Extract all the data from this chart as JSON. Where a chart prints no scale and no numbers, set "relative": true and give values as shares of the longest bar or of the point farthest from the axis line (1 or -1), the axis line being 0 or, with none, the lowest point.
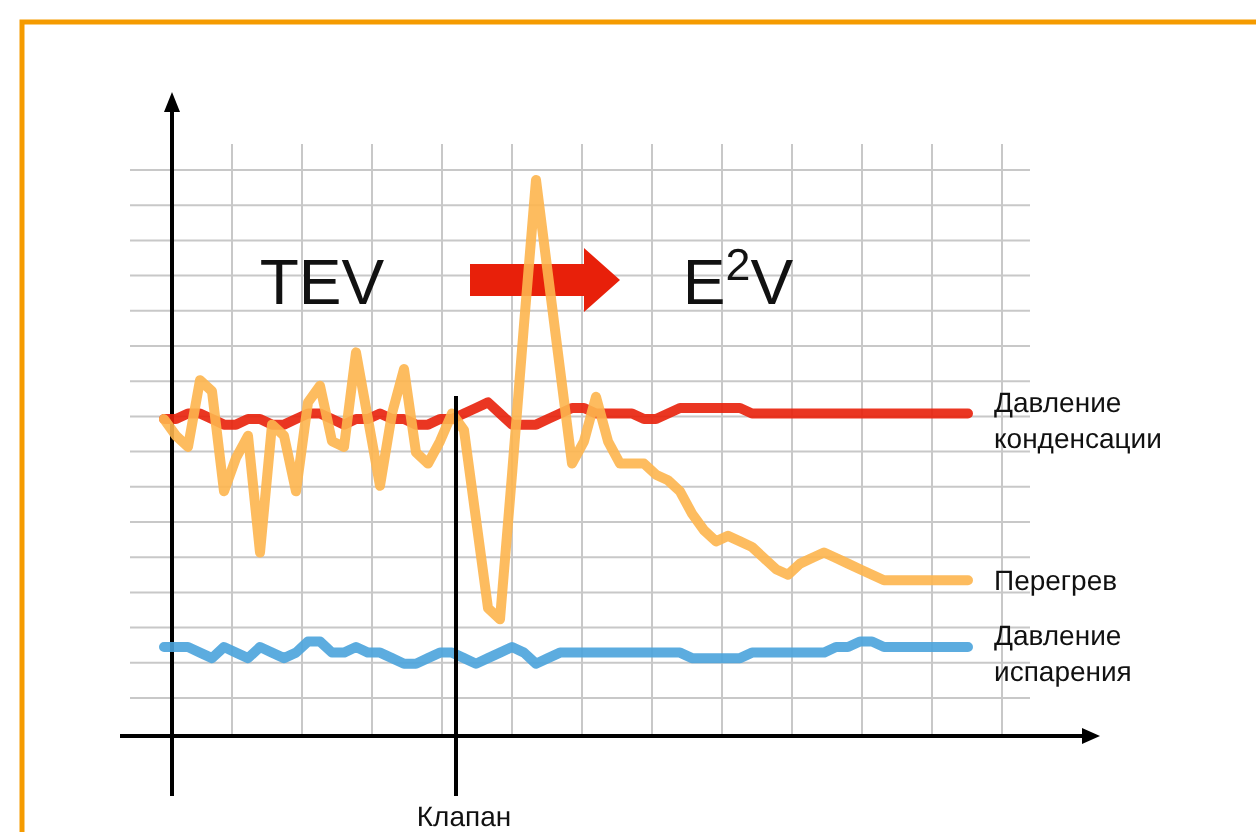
{
  "chart_data": {
    "type": "line",
    "relative": true,
    "categories": [
      null,
      null,
      null,
      null,
      null,
      null,
      null,
      null,
      null,
      null,
      null,
      null,
      null,
      null,
      null,
      null,
      null,
      null,
      null,
      null,
      null,
      null,
      null,
      null,
      null,
      null,
      null,
      null,
      null,
      null,
      null,
      null,
      null,
      null,
      null,
      null,
      null,
      null,
      null,
      null,
      null,
      null,
      null,
      null,
      null,
      null,
      null,
      null,
      null,
      null,
      null,
      null,
      null,
      null,
      null,
      null,
      null,
      null,
      null,
      null,
      null,
      null,
      null,
      null,
      null,
      null,
      null,
      null
    ],
    "series": [
      {
        "name": "Давление конденсации",
        "color": "#e8200a",
        "values": [
          0.57,
          0.57,
          0.58,
          0.58,
          0.57,
          0.56,
          0.56,
          0.57,
          0.57,
          0.56,
          0.56,
          0.57,
          0.58,
          0.58,
          0.57,
          0.56,
          0.57,
          0.57,
          0.58,
          0.57,
          0.57,
          0.56,
          0.56,
          0.57,
          0.57,
          0.58,
          0.59,
          0.6,
          0.58,
          0.56,
          0.56,
          0.56,
          0.57,
          0.58,
          0.59,
          0.59,
          0.58,
          0.58,
          0.58,
          0.58,
          0.57,
          0.57,
          0.58,
          0.59,
          0.59,
          0.59,
          0.59,
          0.59,
          0.59,
          0.58,
          0.58,
          0.58,
          0.58,
          0.58,
          0.58,
          0.58,
          0.58,
          0.58,
          0.58,
          0.58,
          0.58,
          0.58,
          0.58,
          0.58,
          0.58,
          0.58,
          0.58,
          0.58
        ]
      },
      {
        "name": "Перегрев",
        "color": "#fdb54e",
        "values": [
          0.57,
          0.54,
          0.52,
          0.64,
          0.62,
          0.44,
          0.5,
          0.54,
          0.33,
          0.56,
          0.54,
          0.44,
          0.6,
          0.63,
          0.53,
          0.52,
          0.69,
          0.57,
          0.45,
          0.58,
          0.66,
          0.51,
          0.49,
          0.53,
          0.58,
          0.55,
          0.39,
          0.23,
          0.21,
          0.47,
          0.74,
          1,
          0.83,
          0.66,
          0.49,
          0.53,
          0.61,
          0.53,
          0.49,
          0.49,
          0.49,
          0.47,
          0.46,
          0.44,
          0.4,
          0.37,
          0.35,
          0.36,
          0.35,
          0.34,
          0.32,
          0.3,
          0.29,
          0.31,
          0.32,
          0.33,
          0.32,
          0.31,
          0.3,
          0.29,
          0.28,
          0.28,
          0.28,
          0.28,
          0.28,
          0.28,
          0.28,
          0.28
        ]
      },
      {
        "name": "Давление испарения",
        "color": "#4aa3dc",
        "values": [
          0.16,
          0.16,
          0.16,
          0.15,
          0.14,
          0.16,
          0.15,
          0.14,
          0.16,
          0.15,
          0.14,
          0.15,
          0.17,
          0.17,
          0.15,
          0.15,
          0.16,
          0.15,
          0.15,
          0.14,
          0.13,
          0.13,
          0.14,
          0.15,
          0.15,
          0.14,
          0.13,
          0.14,
          0.15,
          0.16,
          0.15,
          0.13,
          0.14,
          0.15,
          0.15,
          0.15,
          0.15,
          0.15,
          0.15,
          0.15,
          0.15,
          0.15,
          0.15,
          0.15,
          0.14,
          0.14,
          0.14,
          0.14,
          0.14,
          0.15,
          0.15,
          0.15,
          0.15,
          0.15,
          0.15,
          0.15,
          0.16,
          0.16,
          0.17,
          0.17,
          0.16,
          0.16,
          0.16,
          0.16,
          0.16,
          0.16,
          0.16,
          0.16
        ]
      }
    ],
    "annotations": [
      "TEV",
      "E$^{2}$V",
      "Клапан"
    ],
    "grid": true,
    "legend": false,
    "line_style": "solid",
    "marker": "none"
  }
}
